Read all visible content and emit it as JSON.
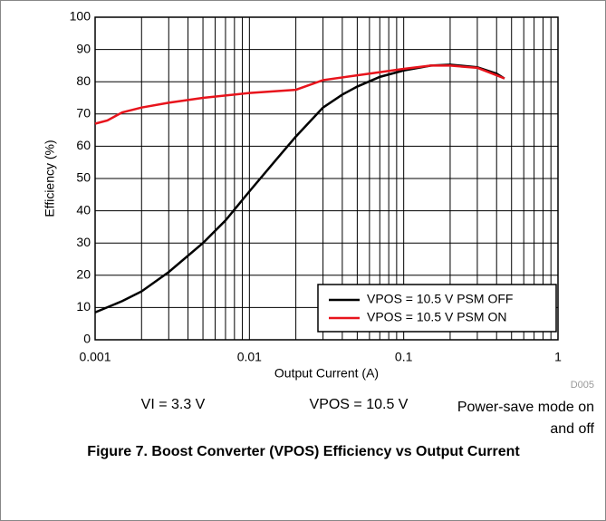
{
  "chart_data": {
    "type": "line",
    "x_label": "Output Current (A)",
    "y_label": "Efficiency (%)",
    "code": "D005",
    "annotations": [
      "VI = 3.3 V",
      "VPOS = 10.5 V",
      "Power-save mode on and off"
    ],
    "caption": "Figure 7. Boost Converter (VPOS) Efficiency vs Output Current",
    "xscale": "log",
    "xlim": [
      0.001,
      1
    ],
    "xticks": [
      0.001,
      0.01,
      0.1,
      1
    ],
    "xminorticks": [
      0.002,
      0.003,
      0.004,
      0.005,
      0.006,
      0.007,
      0.008,
      0.009,
      0.02,
      0.03,
      0.04,
      0.05,
      0.06,
      0.07,
      0.08,
      0.09,
      0.2,
      0.3,
      0.4,
      0.5,
      0.6,
      0.7,
      0.8,
      0.9
    ],
    "ylim": [
      0,
      100
    ],
    "yticks": [
      0,
      10,
      20,
      30,
      40,
      50,
      60,
      70,
      80,
      90,
      100
    ],
    "grid": true,
    "legend": "lower right",
    "series": [
      {
        "name": "VPOS = 10.5 V PSM OFF",
        "color": "#000000",
        "x": [
          0.001,
          0.0015,
          0.002,
          0.003,
          0.005,
          0.007,
          0.01,
          0.015,
          0.02,
          0.03,
          0.04,
          0.05,
          0.07,
          0.1,
          0.15,
          0.2,
          0.3,
          0.4,
          0.45
        ],
        "values": [
          8.5,
          12,
          15,
          21,
          30,
          37,
          46,
          56,
          63,
          72,
          76,
          78.5,
          81.5,
          83.5,
          85,
          85.3,
          84.5,
          82.5,
          81
        ]
      },
      {
        "name": "VPOS = 10.5 V PSM ON",
        "color": "#e8141c",
        "x": [
          0.001,
          0.0012,
          0.0015,
          0.002,
          0.003,
          0.005,
          0.01,
          0.02,
          0.03,
          0.05,
          0.1,
          0.15,
          0.2,
          0.3,
          0.4,
          0.45
        ],
        "values": [
          67,
          68,
          70.5,
          72,
          73.5,
          75,
          76.5,
          77.5,
          80.5,
          82,
          84,
          85,
          85,
          84.3,
          82,
          81
        ]
      }
    ]
  }
}
